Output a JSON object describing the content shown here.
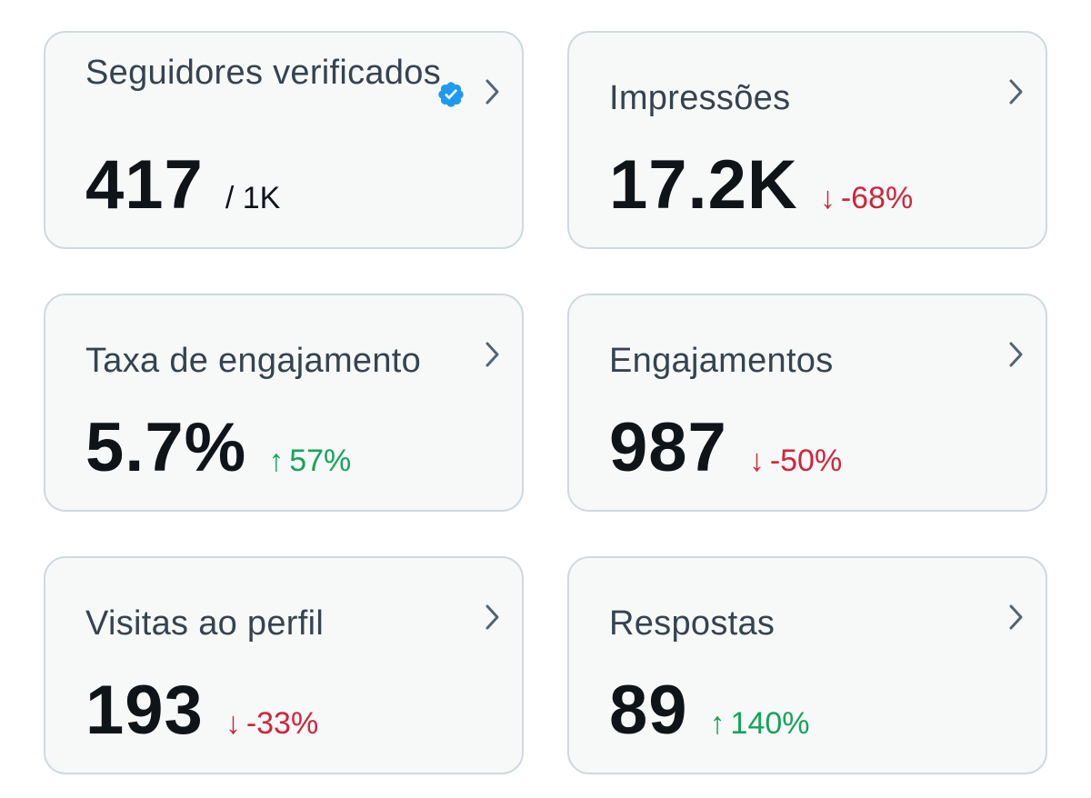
{
  "cards": [
    {
      "title": "Seguidores verificados",
      "value": "417",
      "sub": "/ 1K",
      "icon": "verified-badge-icon"
    },
    {
      "title": "Impressões",
      "value": "17.2K",
      "delta": "-68%",
      "trend": "down"
    },
    {
      "title": "Taxa de engajamento",
      "value": "5.7%",
      "delta": "57%",
      "trend": "up"
    },
    {
      "title": "Engajamentos",
      "value": "987",
      "delta": "-50%",
      "trend": "down"
    },
    {
      "title": "Visitas ao perfil",
      "value": "193",
      "delta": "-33%",
      "trend": "down"
    },
    {
      "title": "Respostas",
      "value": "89",
      "delta": "140%",
      "trend": "up"
    }
  ],
  "colors": {
    "card_bg": "#f7f9f9",
    "card_border": "#cfd9de",
    "title": "#36434f",
    "value": "#0f1419",
    "down": "#d0253a",
    "up": "#17a35a",
    "verified": "#1d9bf0",
    "chevron": "#536471"
  }
}
